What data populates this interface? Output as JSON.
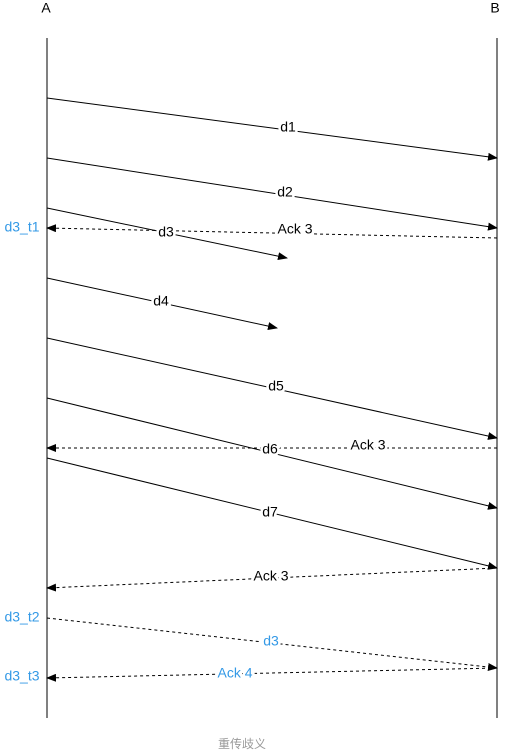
{
  "participants": [
    "A",
    "B"
  ],
  "messages": [
    {
      "label": "d1"
    },
    {
      "label": "d2"
    },
    {
      "label": "d3"
    },
    {
      "label": "Ack 3"
    },
    {
      "label": "d4"
    },
    {
      "label": "d5"
    },
    {
      "label": "Ack 3"
    },
    {
      "label": "d6"
    },
    {
      "label": "d7"
    },
    {
      "label": "Ack 3"
    },
    {
      "label": "d3"
    },
    {
      "label": "Ack 4"
    }
  ],
  "time_labels": [
    "d3_t1",
    "d3_t2",
    "d3_t3"
  ],
  "caption": "重传歧义"
}
